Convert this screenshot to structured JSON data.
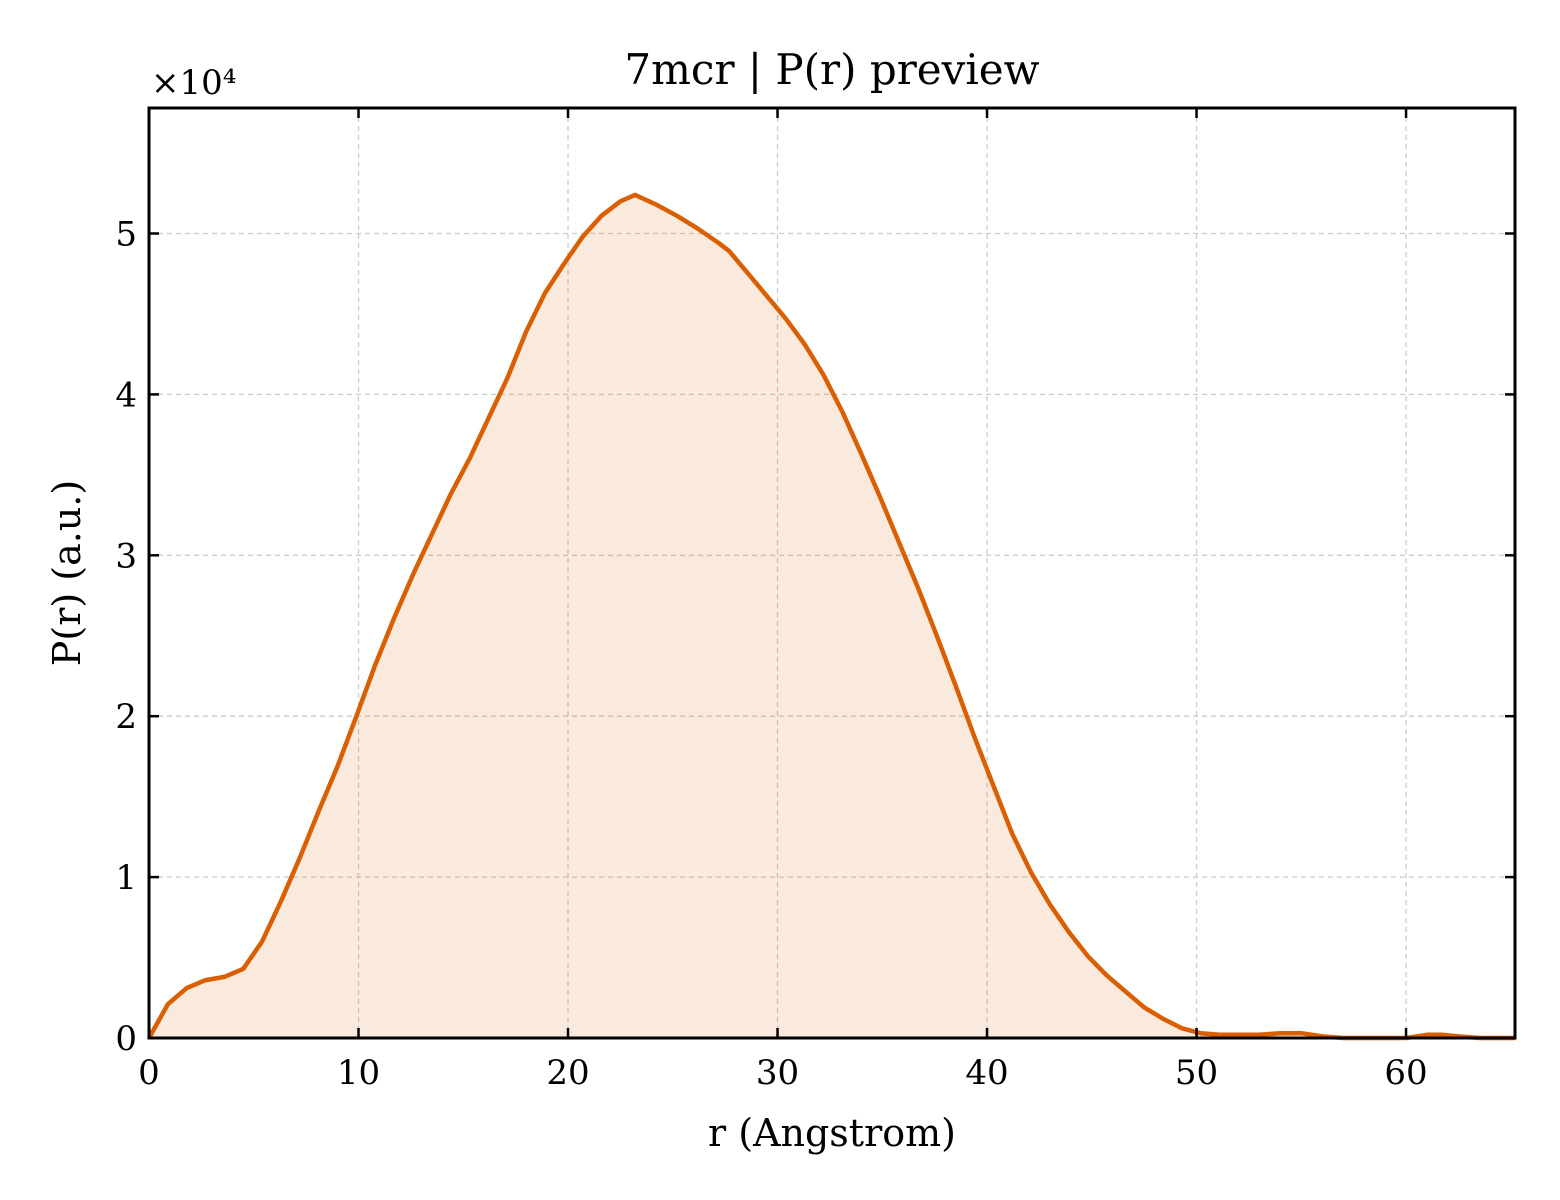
{
  "chart_data": {
    "type": "area",
    "title": "7mcr | P(r) preview",
    "xlabel": "r (Angstrom)",
    "ylabel": "P(r) (a.u.)",
    "y_multiplier_label": "×10⁴",
    "y_scale_factor": 10000,
    "xlim": [
      0,
      65.2
    ],
    "ylim": [
      0,
      5.78
    ],
    "xticks": [
      0,
      10,
      20,
      30,
      40,
      50,
      60
    ],
    "yticks": [
      0,
      1,
      2,
      3,
      4,
      5
    ],
    "grid": true,
    "colors": {
      "line": "#d95f02",
      "fill": "#d95f02",
      "grid": "#cccccc"
    },
    "series": [
      {
        "x": [
          0,
          0.9,
          1.8,
          2.7,
          3.6,
          4.5,
          5.4,
          6.3,
          7.2,
          8.1,
          9.0,
          9.9,
          10.8,
          11.7,
          12.6,
          13.5,
          14.4,
          15.3,
          16.2,
          17.1,
          18.0,
          18.9,
          19.8,
          20.7,
          21.6,
          22.5,
          23.2,
          24.2,
          25.2,
          26.2,
          27.2,
          27.7,
          28.6,
          29.5,
          30.4,
          31.3,
          32.2,
          33.1,
          34.0,
          34.9,
          35.8,
          36.7,
          37.6,
          38.5,
          39.4,
          40.3,
          41.2,
          42.1,
          43.0,
          43.9,
          44.8,
          45.7,
          46.6,
          47.5,
          48.4,
          49.3,
          50.2,
          51.1,
          52.0,
          53.0,
          54.0,
          55.0,
          56.0,
          57.0,
          58.0,
          59.0,
          60.0,
          61.0,
          61.7,
          62.5,
          63.5,
          64.5,
          65.2
        ],
        "y": [
          0.0,
          0.21,
          0.31,
          0.36,
          0.38,
          0.43,
          0.6,
          0.85,
          1.12,
          1.41,
          1.69,
          2.0,
          2.32,
          2.61,
          2.88,
          3.13,
          3.38,
          3.6,
          3.85,
          4.1,
          4.39,
          4.63,
          4.81,
          4.98,
          5.11,
          5.2,
          5.24,
          5.18,
          5.11,
          5.03,
          4.94,
          4.89,
          4.75,
          4.61,
          4.47,
          4.31,
          4.12,
          3.89,
          3.63,
          3.36,
          3.08,
          2.8,
          2.5,
          2.19,
          1.87,
          1.57,
          1.27,
          1.03,
          0.83,
          0.66,
          0.51,
          0.39,
          0.29,
          0.19,
          0.12,
          0.06,
          0.03,
          0.02,
          0.02,
          0.02,
          0.03,
          0.03,
          0.01,
          0.0,
          0.0,
          0.0,
          0.0,
          0.02,
          0.02,
          0.01,
          0.0,
          0.0,
          0.0
        ]
      }
    ]
  }
}
